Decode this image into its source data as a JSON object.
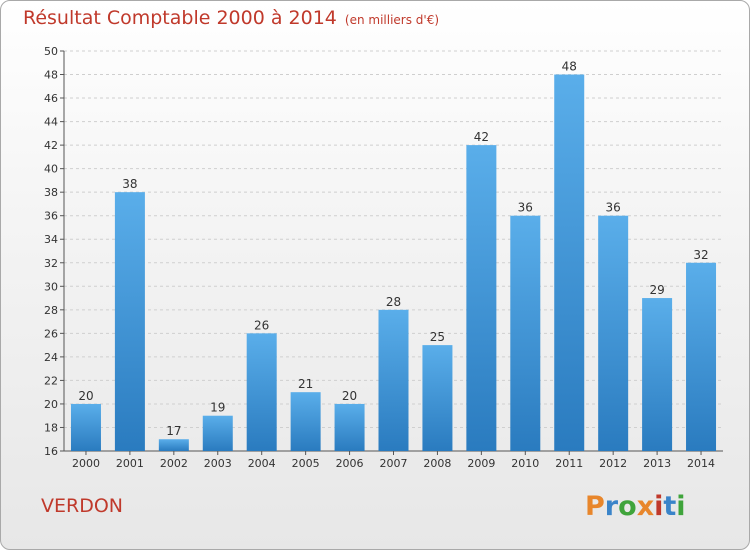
{
  "header": {
    "title": "Résultat Comptable 2000 à 2014",
    "subtitle": "(en milliers d'€)"
  },
  "footer": {
    "location": "VERDON",
    "logo_text": "Proxiti",
    "logo_colors": [
      "#e8862b",
      "#3a84c9",
      "#3fa43b",
      "#e8862b",
      "#c0392b",
      "#3a84c9",
      "#3fa43b"
    ]
  },
  "colors": {
    "bar_top": "#5aaeea",
    "bar_bottom": "#2a7bbf",
    "title": "#c0392b",
    "grid": "#cfcfcf"
  },
  "chart_data": {
    "type": "bar",
    "title": "Résultat Comptable 2000 à 2014",
    "subtitle": "(en milliers d'€)",
    "categories": [
      "2000",
      "2001",
      "2002",
      "2003",
      "2004",
      "2005",
      "2006",
      "2007",
      "2008",
      "2009",
      "2010",
      "2011",
      "2012",
      "2013",
      "2014"
    ],
    "values": [
      20,
      38,
      17,
      19,
      26,
      21,
      20,
      28,
      25,
      42,
      36,
      48,
      36,
      29,
      32
    ],
    "ylim": [
      16,
      50
    ],
    "yticks": [
      16,
      18,
      20,
      22,
      24,
      26,
      28,
      30,
      32,
      34,
      36,
      38,
      40,
      42,
      44,
      46,
      48,
      50
    ],
    "grid": true,
    "data_labels": true
  }
}
